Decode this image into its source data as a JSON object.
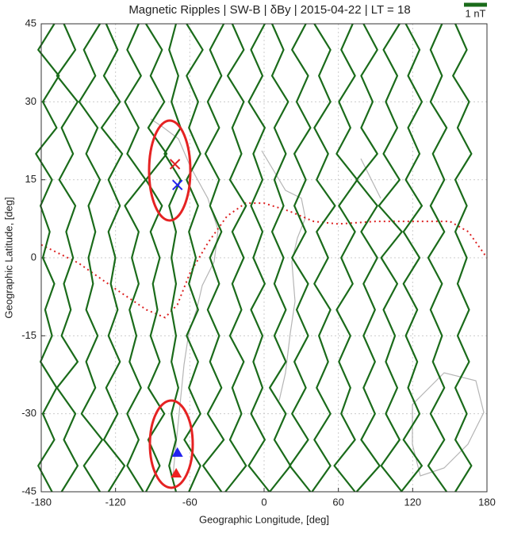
{
  "chart_data": {
    "type": "line",
    "title": "Magnetic Ripples | SW-B | δBy | 2015-04-22 | LT = 18",
    "x_label": "Geographic Longitude, [deg]",
    "y_label": "Geographic Latitude, [deg]",
    "xlim": [
      -180,
      180
    ],
    "ylim": [
      -45,
      45
    ],
    "xticks": [
      -180,
      -120,
      -60,
      0,
      60,
      120,
      180
    ],
    "yticks": [
      -45,
      -30,
      -15,
      0,
      15,
      30,
      45
    ],
    "grid": true,
    "scale": {
      "value": 1,
      "label": "1 nT",
      "color": "#1a6b1a"
    },
    "latitudes": [
      45,
      40,
      35,
      30,
      25,
      20,
      15,
      10,
      5,
      0,
      -5,
      -10,
      -15,
      -20,
      -25,
      -30,
      -35,
      -40,
      -45
    ],
    "series": [
      {
        "longitude": -175,
        "color": "#1a6b1a",
        "values": [
          0.3,
          -0.4,
          0.5,
          -0.2,
          0.4,
          -0.5,
          0.2,
          -0.3,
          0.1,
          -0.2,
          0.3,
          -0.1,
          0.2,
          -0.3,
          0.4,
          -0.2,
          0.3,
          -0.4,
          0.2
        ]
      },
      {
        "longitude": -158,
        "color": "#1a6b1a",
        "values": [
          -0.2,
          0.3,
          -0.5,
          0.4,
          -0.3,
          0.2,
          -0.4,
          0.3,
          -0.1,
          0.2,
          -0.2,
          0.1,
          -0.3,
          0.4,
          -0.5,
          0.3,
          -0.2,
          0.4,
          -0.3
        ]
      },
      {
        "longitude": -140,
        "color": "#1a6b1a",
        "values": [
          0.4,
          -0.3,
          0.2,
          -0.5,
          0.3,
          -0.2,
          0.4,
          -0.1,
          0.2,
          -0.1,
          0.1,
          -0.2,
          0.3,
          -0.2,
          0.2,
          -0.4,
          0.5,
          -0.3,
          0.4
        ]
      },
      {
        "longitude": -122,
        "color": "#1a6b1a",
        "values": [
          -0.3,
          0.2,
          -0.4,
          0.3,
          -0.5,
          0.4,
          -0.2,
          0.3,
          -0.2,
          0.1,
          -0.1,
          0.2,
          -0.2,
          0.3,
          -0.3,
          0.2,
          -0.4,
          0.5,
          -0.2
        ]
      },
      {
        "longitude": -105,
        "color": "#1a6b1a",
        "values": [
          0.2,
          -0.3,
          0.3,
          -0.4,
          0.2,
          -0.3,
          0.5,
          -0.4,
          0.2,
          -0.1,
          0.2,
          -0.2,
          0.1,
          -0.2,
          0.3,
          -0.3,
          0.2,
          -0.3,
          0.4
        ]
      },
      {
        "longitude": -88,
        "color": "#1a6b1a",
        "values": [
          -0.4,
          0.3,
          -0.2,
          0.4,
          -0.3,
          0.5,
          -0.4,
          0.3,
          -0.2,
          0.2,
          -0.1,
          0.1,
          -0.2,
          0.2,
          -0.3,
          0.4,
          -0.3,
          0.2,
          -0.4
        ]
      },
      {
        "longitude": -73,
        "color": "#1a6b1a",
        "values": [
          0.1,
          -0.2,
          0.2,
          -0.1,
          0.3,
          -0.4,
          0.3,
          -0.2,
          0.1,
          -0.1,
          0.1,
          -0.1,
          0.1,
          -0.1,
          0.2,
          -0.1,
          0.1,
          -0.2,
          0.1
        ]
      },
      {
        "longitude": -57,
        "color": "#1a6b1a",
        "values": [
          -0.3,
          0.4,
          -0.3,
          0.2,
          -0.2,
          0.3,
          -0.3,
          0.2,
          -0.2,
          0.1,
          -0.2,
          0.2,
          -0.3,
          0.2,
          -0.2,
          0.3,
          -0.4,
          0.3,
          -0.2
        ]
      },
      {
        "longitude": -40,
        "color": "#1a6b1a",
        "values": [
          0.4,
          -0.2,
          0.3,
          -0.3,
          0.2,
          -0.4,
          0.2,
          -0.2,
          0.3,
          -0.2,
          0.2,
          -0.3,
          0.2,
          -0.2,
          0.3,
          -0.3,
          0.4,
          -0.5,
          0.3
        ]
      },
      {
        "longitude": -22,
        "color": "#1a6b1a",
        "values": [
          -0.2,
          0.3,
          -0.4,
          0.3,
          -0.2,
          0.2,
          -0.3,
          0.4,
          -0.2,
          0.3,
          -0.2,
          0.2,
          -0.3,
          0.3,
          -0.2,
          0.2,
          -0.3,
          0.4,
          -0.5
        ]
      },
      {
        "longitude": -5,
        "color": "#1a6b1a",
        "values": [
          0.3,
          -0.3,
          0.2,
          -0.4,
          0.3,
          -0.2,
          0.2,
          -0.3,
          0.2,
          -0.2,
          0.3,
          -0.3,
          0.2,
          -0.2,
          0.2,
          -0.3,
          0.3,
          -0.4,
          0.5
        ]
      },
      {
        "longitude": 12,
        "color": "#1a6b1a",
        "values": [
          -0.3,
          0.2,
          -0.3,
          0.4,
          -0.2,
          0.3,
          -0.2,
          0.2,
          -0.3,
          0.2,
          -0.2,
          0.3,
          -0.2,
          0.3,
          -0.4,
          0.3,
          -0.2,
          0.5,
          -0.4
        ]
      },
      {
        "longitude": 30,
        "color": "#1a6b1a",
        "values": [
          0.2,
          -0.4,
          0.3,
          -0.2,
          0.4,
          -0.3,
          0.2,
          -0.3,
          0.2,
          -0.4,
          0.3,
          -0.2,
          0.3,
          -0.3,
          0.2,
          -0.4,
          0.3,
          -0.5,
          0.4
        ]
      },
      {
        "longitude": 48,
        "color": "#1a6b1a",
        "values": [
          -0.4,
          0.3,
          -0.2,
          0.3,
          -0.4,
          0.2,
          -0.3,
          0.5,
          -0.3,
          0.2,
          -0.4,
          0.3,
          -0.2,
          0.2,
          -0.3,
          0.3,
          -0.4,
          0.3,
          -0.5
        ]
      },
      {
        "longitude": 66,
        "color": "#1a6b1a",
        "values": [
          0.3,
          -0.2,
          0.4,
          -0.3,
          0.2,
          -0.4,
          0.5,
          -0.3,
          0.4,
          -0.2,
          0.3,
          -0.4,
          0.2,
          -0.3,
          0.2,
          -0.2,
          0.4,
          -0.5,
          0.4
        ]
      },
      {
        "longitude": 84,
        "color": "#1a6b1a",
        "values": [
          -0.2,
          0.4,
          -0.3,
          0.2,
          -0.3,
          0.4,
          -0.5,
          0.4,
          -0.3,
          0.4,
          -0.2,
          0.3,
          -0.2,
          0.3,
          -0.2,
          0.3,
          -0.3,
          0.5,
          -0.5
        ]
      },
      {
        "longitude": 102,
        "color": "#1a6b1a",
        "values": [
          0.4,
          -0.3,
          0.3,
          -0.2,
          0.3,
          -0.3,
          0.4,
          -0.5,
          0.5,
          -0.4,
          0.3,
          -0.3,
          0.2,
          -0.2,
          0.3,
          -0.2,
          0.4,
          -0.4,
          0.5
        ]
      },
      {
        "longitude": 120,
        "color": "#1a6b1a",
        "values": [
          -0.3,
          0.3,
          -0.2,
          0.4,
          -0.2,
          0.3,
          -0.3,
          0.4,
          -0.4,
          0.3,
          -0.4,
          0.2,
          -0.3,
          0.2,
          -0.2,
          0.3,
          -0.4,
          0.4,
          -0.5
        ]
      },
      {
        "longitude": 140,
        "color": "#1a6b1a",
        "values": [
          0.2,
          -0.3,
          0.2,
          -0.3,
          0.4,
          -0.2,
          0.3,
          -0.3,
          0.3,
          -0.4,
          0.2,
          -0.3,
          0.2,
          -0.2,
          0.3,
          -0.3,
          0.3,
          -0.4,
          0.4
        ]
      },
      {
        "longitude": 160,
        "color": "#1a6b1a",
        "values": [
          -0.3,
          0.2,
          -0.4,
          0.3,
          -0.2,
          0.4,
          -0.3,
          0.2,
          -0.3,
          0.2,
          -0.2,
          0.3,
          -0.2,
          0.3,
          -0.3,
          0.2,
          -0.3,
          0.4,
          -0.3
        ]
      }
    ],
    "dip_equator": {
      "color": "#dd2222",
      "lon": [
        -180,
        -150,
        -120,
        -95,
        -80,
        -70,
        -60,
        -45,
        -30,
        -15,
        0,
        20,
        40,
        60,
        90,
        120,
        150,
        165,
        180
      ],
      "lat": [
        2.5,
        -1,
        -6,
        -10,
        -11.5,
        -9,
        -3,
        3,
        8,
        10.5,
        10.5,
        9,
        7,
        6.5,
        7,
        7,
        7,
        5,
        0
      ]
    },
    "markers": [
      {
        "lon": -72,
        "lat": 18,
        "color": "#dd2222",
        "shape": "x"
      },
      {
        "lon": -70,
        "lat": 14,
        "color": "#2222ee",
        "shape": "x"
      },
      {
        "lon": -70,
        "lat": -37.5,
        "color": "#2222ee",
        "shape": "triangle"
      },
      {
        "lon": -71,
        "lat": -41.5,
        "color": "#ee2222",
        "shape": "triangle"
      }
    ]
  }
}
